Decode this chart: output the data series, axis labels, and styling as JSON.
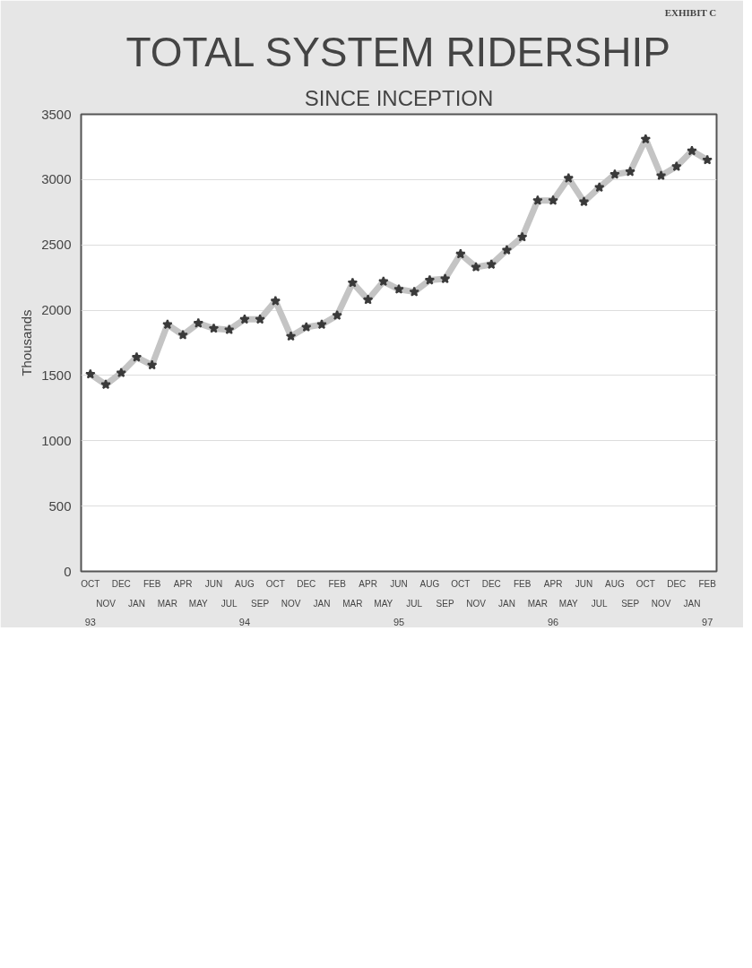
{
  "chart_data": {
    "type": "line",
    "title": "TOTAL SYSTEM RIDERSHIP",
    "subtitle": "SINCE INCEPTION",
    "ylabel": "Thousands",
    "categories": [
      "OCT",
      "NOV",
      "DEC",
      "JAN",
      "FEB",
      "MAR",
      "APR",
      "MAY",
      "JUN",
      "JUL",
      "AUG",
      "SEP",
      "OCT",
      "NOV",
      "DEC",
      "JAN",
      "FEB",
      "MAR",
      "APR",
      "MAY",
      "JUN",
      "JUL",
      "AUG",
      "SEP",
      "OCT",
      "NOV",
      "DEC",
      "JAN",
      "FEB",
      "MAR",
      "APR",
      "MAY",
      "JUN",
      "JUL",
      "AUG",
      "SEP",
      "OCT",
      "NOV",
      "DEC",
      "JAN",
      "FEB"
    ],
    "series": [
      {
        "color": "#3a3a3a",
        "values": [
          1510,
          1430,
          1520,
          1640,
          1580,
          1890,
          1810,
          1900,
          1860,
          1850,
          1930,
          1930,
          2070,
          1800,
          1870,
          1890,
          1960,
          2210,
          2080,
          2220,
          2160,
          2140,
          2230,
          2240,
          2430,
          2330,
          2350,
          2460,
          2560,
          2840,
          2840,
          3010,
          2830,
          2940,
          3040,
          3060,
          3310,
          3030,
          3100,
          3220,
          3150
        ]
      }
    ],
    "ylim": [
      0,
      3500
    ],
    "yticks": [
      0,
      500,
      1000,
      1500,
      2000,
      2500,
      3000,
      3500
    ],
    "grid": "y",
    "marker": "star",
    "line_style": "solid",
    "annotations": [
      "93",
      "94",
      "95",
      "96",
      "97",
      "EXHIBIT C"
    ]
  }
}
